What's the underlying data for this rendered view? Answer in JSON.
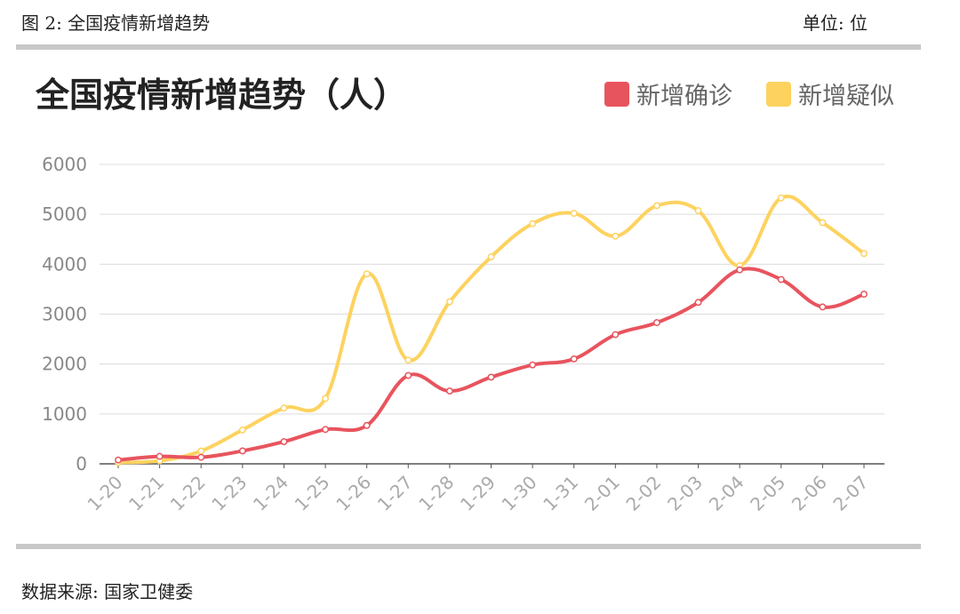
{
  "caption": "图 2:  全国疫情新增趋势",
  "unit": "单位:  位",
  "source": "数据来源:  国家卫健委",
  "chart_data": {
    "type": "line",
    "title": "全国疫情新增趋势（人）",
    "legend_position": "top-right",
    "grid": true,
    "ylim": [
      0,
      6000
    ],
    "yticks": [
      "0",
      "1000",
      "2000",
      "3000",
      "4000",
      "5000",
      "6000"
    ],
    "categories": [
      "1-20",
      "1-21",
      "1-22",
      "1-23",
      "1-24",
      "1-25",
      "1-26",
      "1-27",
      "1-28",
      "1-29",
      "1-30",
      "1-31",
      "2-01",
      "2-02",
      "2-03",
      "2-04",
      "2-05",
      "2-06",
      "2-07"
    ],
    "series": [
      {
        "name": "新增确诊",
        "color": "#e8545e",
        "values": [
          77,
          149,
          131,
          259,
          444,
          688,
          769,
          1771,
          1459,
          1737,
          1982,
          2102,
          2590,
          2829,
          3235,
          3887,
          3694,
          3143,
          3399
        ]
      },
      {
        "name": "新增疑似",
        "color": "#fdd25f",
        "values": [
          27,
          60,
          257,
          680,
          1118,
          1309,
          3806,
          2077,
          3248,
          4148,
          4812,
          5019,
          4562,
          5173,
          5072,
          3971,
          5328,
          4833,
          4214
        ]
      }
    ]
  }
}
